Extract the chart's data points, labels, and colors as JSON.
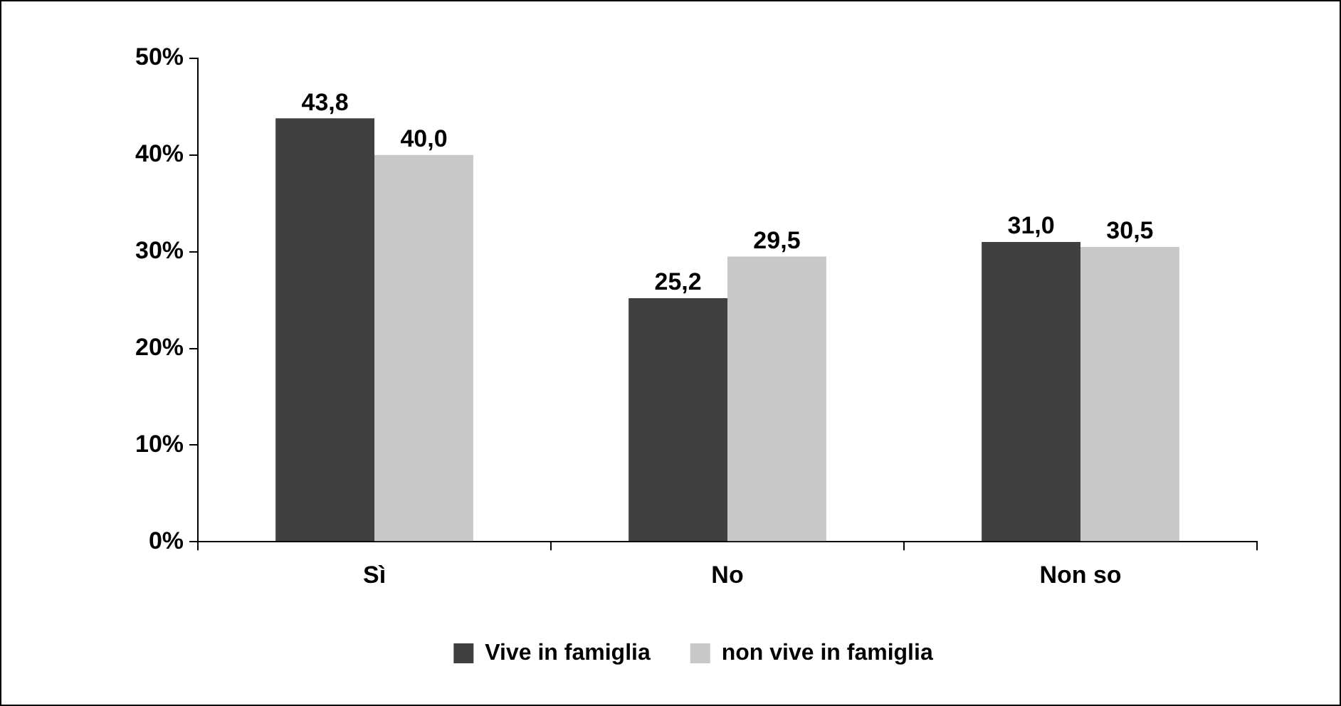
{
  "chart_data": {
    "type": "bar",
    "categories": [
      "Sì",
      "No",
      "Non so"
    ],
    "series": [
      {
        "name": "Vive in famiglia",
        "color": "#404040",
        "values": [
          43.8,
          25.2,
          31.0
        ],
        "value_labels": [
          "43,8",
          "25,2",
          "31,0"
        ]
      },
      {
        "name": "non vive in famiglia",
        "color": "#c8c8c8",
        "values": [
          40.0,
          29.5,
          30.5
        ],
        "value_labels": [
          "40,0",
          "29,5",
          "30,5"
        ]
      }
    ],
    "ylim": [
      0,
      50
    ],
    "yticks": [
      {
        "value": 0,
        "label": "0%"
      },
      {
        "value": 10,
        "label": "10%"
      },
      {
        "value": 20,
        "label": "20%"
      },
      {
        "value": 30,
        "label": "30%"
      },
      {
        "value": 40,
        "label": "40%"
      },
      {
        "value": 50,
        "label": "50%"
      }
    ],
    "legend": "bottom"
  }
}
